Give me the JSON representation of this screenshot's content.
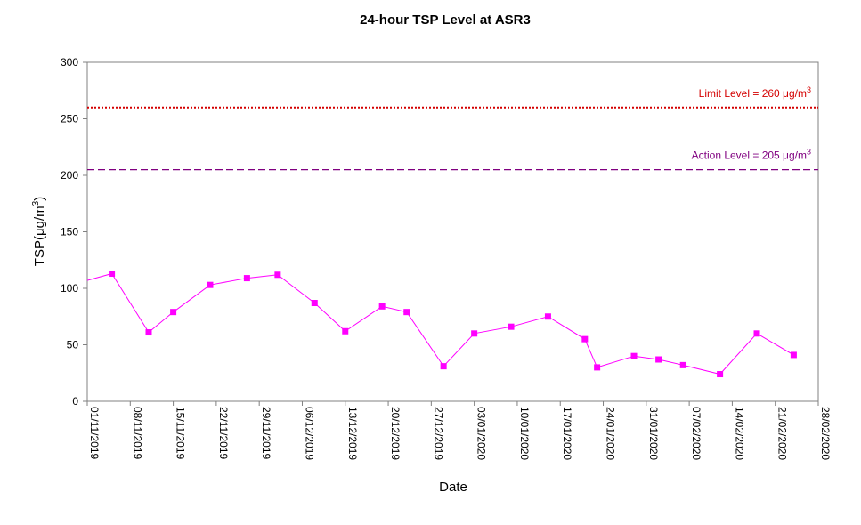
{
  "chart_data": {
    "type": "line",
    "title": "24-hour TSP Level at ASR3",
    "xlabel": "Date",
    "ylabel": "TSP(μg/m³)",
    "ylabel_parts": {
      "prefix": "TSP(",
      "mu": "μ",
      "unit": "g/m",
      "exp": "3",
      "suffix": ")"
    },
    "ylim": [
      0,
      300
    ],
    "yticks": [
      "0",
      "50",
      "100",
      "150",
      "200",
      "250",
      "300"
    ],
    "xlim": [
      "2019-11-01",
      "2020-02-28"
    ],
    "xticks": [
      "01/11/2019",
      "08/11/2019",
      "15/11/2019",
      "22/11/2019",
      "29/11/2019",
      "06/12/2019",
      "13/12/2019",
      "20/12/2019",
      "27/12/2019",
      "03/01/2020",
      "10/01/2020",
      "17/01/2020",
      "24/01/2020",
      "31/01/2020",
      "07/02/2020",
      "14/02/2020",
      "21/02/2020",
      "28/02/2020"
    ],
    "grid": false,
    "series": [
      {
        "name": "",
        "color": "#ff00ff",
        "x": [
          "2019-11-05",
          "2019-11-11",
          "2019-11-15",
          "2019-11-21",
          "2019-11-27",
          "2019-12-02",
          "2019-12-08",
          "2019-12-13",
          "2019-12-19",
          "2019-12-23",
          "2019-12-29",
          "2020-01-03",
          "2020-01-09",
          "2020-01-15",
          "2020-01-21",
          "2020-01-23",
          "2020-01-29",
          "2020-02-02",
          "2020-02-06",
          "2020-02-12",
          "2020-02-18",
          "2020-02-24"
        ],
        "y": [
          113,
          61,
          79,
          103,
          109,
          112,
          87,
          62,
          84,
          79,
          31,
          60,
          66,
          75,
          55,
          30,
          40,
          37,
          32,
          24,
          60,
          41
        ],
        "left_edge_y": 107
      }
    ],
    "reference_lines": [
      {
        "label": "Limit Level  = 260 ",
        "unit_mu": "μ",
        "unit": "g/m",
        "unit_exp": "3",
        "value": 260,
        "color": "#d40000",
        "style": "dotted"
      },
      {
        "label": "Action Level  = 205 ",
        "unit_mu": "μ",
        "unit": "g/m",
        "unit_exp": "3",
        "value": 205,
        "color": "#800080",
        "style": "dashed"
      }
    ]
  }
}
